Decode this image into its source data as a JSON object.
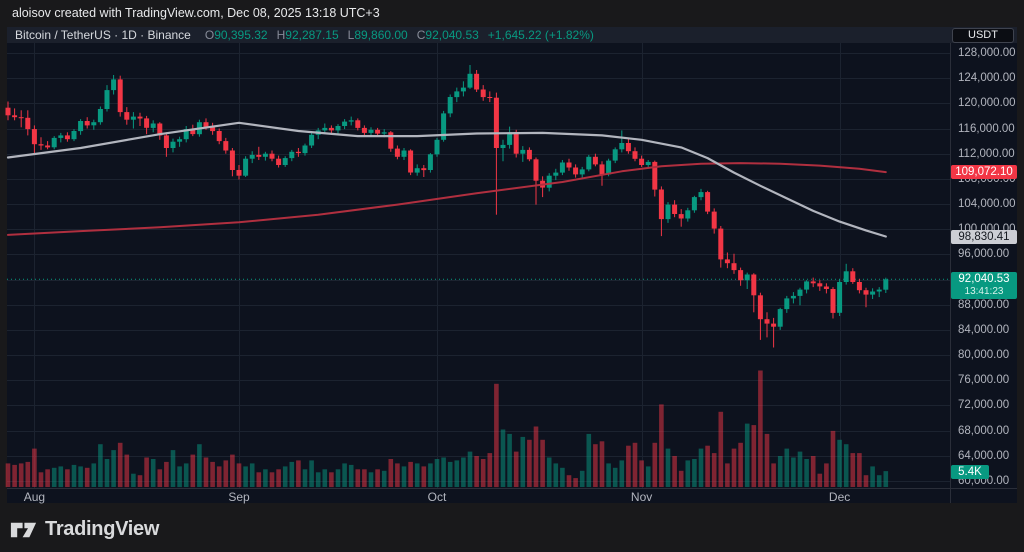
{
  "watermark": "aloisov created with TradingView.com, Dec 08, 2025 13:18 UTC+3",
  "legend": {
    "title": "Bitcoin / TetherUS · 1D · Binance",
    "o_label": "O",
    "o": "90,395.32",
    "h_label": "H",
    "h": "92,287.15",
    "l_label": "L",
    "l": "89,860.00",
    "c_label": "C",
    "c": "92,040.53",
    "change": "+1,645.22 (+1.82%)"
  },
  "currency_button": "USDT",
  "price_axis": {
    "ticks": [
      {
        "p": 128000,
        "label": "128,000.00"
      },
      {
        "p": 124000,
        "label": "124,000.00"
      },
      {
        "p": 120000,
        "label": "120,000.00"
      },
      {
        "p": 116000,
        "label": "116,000.00"
      },
      {
        "p": 112000,
        "label": "112,000.00"
      },
      {
        "p": 108000,
        "label": "108,000.00"
      },
      {
        "p": 104000,
        "label": "104,000.00"
      },
      {
        "p": 100000,
        "label": "100,000.00"
      },
      {
        "p": 96000,
        "label": "96,000.00"
      },
      {
        "p": 92000,
        "label": "92,000.00"
      },
      {
        "p": 88000,
        "label": "88,000.00"
      },
      {
        "p": 84000,
        "label": "84,000.00"
      },
      {
        "p": 80000,
        "label": "80,000.00"
      },
      {
        "p": 76000,
        "label": "76,000.00"
      },
      {
        "p": 72000,
        "label": "72,000.00"
      },
      {
        "p": 68000,
        "label": "68,000.00"
      },
      {
        "p": 64000,
        "label": "64,000.00"
      },
      {
        "p": 60000,
        "label": "60,000.00"
      }
    ]
  },
  "price_labels": {
    "ma_red": {
      "text": "109,072.10",
      "p": 109072.1
    },
    "ma_gray": {
      "text": "98,830.41",
      "p": 98830.41
    },
    "last": {
      "text": "92,040.53",
      "countdown": "13:41:23",
      "p": 92040.53
    },
    "volume": {
      "text": "5.4K"
    }
  },
  "time_axis": {
    "months": [
      {
        "label": "Aug",
        "i": 4
      },
      {
        "label": "Sep",
        "i": 35
      },
      {
        "label": "Oct",
        "i": 65
      },
      {
        "label": "Nov",
        "i": 96
      },
      {
        "label": "Dec",
        "i": 126
      }
    ]
  },
  "footer": {
    "brand": "TradingView"
  },
  "colors": {
    "up": "#089981",
    "down": "#f23645",
    "vol_up": "rgba(8,153,129,0.5)",
    "vol_down": "rgba(242,54,69,0.5)",
    "ma_gray": "#b2b5be",
    "ma_red": "#b02f3f",
    "grid": "#1c2330",
    "separator": "#2a2e39",
    "chart_bg": "#0d121e",
    "outer_bg": "#19191b",
    "accent": "#089981"
  },
  "chart_data": {
    "type": "candlestick",
    "symbol": "Bitcoin / TetherUS",
    "interval": "1D",
    "exchange": "Binance",
    "title": "BTCUSDT daily candles with volume and two moving averages",
    "start_date": "2025-07-28",
    "y_axis": {
      "min": 60000,
      "max": 128000,
      "step": 4000
    },
    "last_close": 92040.53,
    "ohlc_current": {
      "open": 90395.32,
      "high": 92287.15,
      "low": 89860.0,
      "close": 92040.53
    },
    "candles": [
      [
        119300,
        120300,
        117300,
        118100
      ],
      [
        118100,
        119200,
        117300,
        117800
      ],
      [
        117800,
        118900,
        116200,
        117700
      ],
      [
        117700,
        118900,
        114900,
        115900
      ],
      [
        115900,
        116500,
        112100,
        113500
      ],
      [
        113500,
        114600,
        112600,
        113300
      ],
      [
        113300,
        114000,
        112700,
        113000
      ],
      [
        113000,
        114800,
        112700,
        114500
      ],
      [
        114500,
        115300,
        113800,
        114900
      ],
      [
        114900,
        115400,
        113900,
        114300
      ],
      [
        114300,
        115900,
        114000,
        115600
      ],
      [
        115600,
        117500,
        115000,
        117200
      ],
      [
        117200,
        117800,
        116000,
        116500
      ],
      [
        116500,
        117400,
        115800,
        117000
      ],
      [
        117000,
        119500,
        116600,
        119100
      ],
      [
        119100,
        122900,
        118700,
        122100
      ],
      [
        122100,
        124500,
        121400,
        123800
      ],
      [
        123800,
        124400,
        117900,
        118600
      ],
      [
        118600,
        119400,
        116600,
        117400
      ],
      [
        117400,
        118600,
        116000,
        117900
      ],
      [
        117900,
        118500,
        116400,
        117600
      ],
      [
        117600,
        118000,
        115100,
        116100
      ],
      [
        116100,
        117300,
        115400,
        116800
      ],
      [
        116800,
        117000,
        114200,
        114900
      ],
      [
        114900,
        115400,
        111500,
        112900
      ],
      [
        112900,
        114400,
        112200,
        113900
      ],
      [
        113900,
        114700,
        113100,
        114300
      ],
      [
        114300,
        116400,
        113800,
        115900
      ],
      [
        115900,
        116600,
        114800,
        115100
      ],
      [
        115100,
        117400,
        114700,
        117000
      ],
      [
        117000,
        117600,
        115800,
        116200
      ],
      [
        116200,
        116900,
        115000,
        115600
      ],
      [
        115600,
        116000,
        113500,
        114000
      ],
      [
        114000,
        114500,
        112000,
        112500
      ],
      [
        112500,
        112900,
        108400,
        109400
      ],
      [
        109400,
        110200,
        107900,
        108500
      ],
      [
        108500,
        111600,
        108300,
        111200
      ],
      [
        111200,
        112400,
        110500,
        111800
      ],
      [
        111800,
        113100,
        111000,
        111500
      ],
      [
        111500,
        112300,
        110900,
        112000
      ],
      [
        112000,
        112500,
        110800,
        111200
      ],
      [
        111200,
        111700,
        109800,
        110200
      ],
      [
        110200,
        111600,
        109900,
        111300
      ],
      [
        111300,
        112600,
        110800,
        112300
      ],
      [
        112300,
        112900,
        111500,
        112100
      ],
      [
        112100,
        113600,
        111700,
        113300
      ],
      [
        113300,
        115400,
        112900,
        115000
      ],
      [
        115000,
        116100,
        114300,
        115700
      ],
      [
        115700,
        116800,
        115200,
        116100
      ],
      [
        116100,
        116500,
        115100,
        115700
      ],
      [
        115700,
        116700,
        115200,
        116400
      ],
      [
        116400,
        117500,
        115900,
        117100
      ],
      [
        117100,
        117900,
        116500,
        117300
      ],
      [
        117300,
        117600,
        115700,
        116100
      ],
      [
        116100,
        116500,
        114800,
        115300
      ],
      [
        115300,
        116200,
        114900,
        115800
      ],
      [
        115800,
        116100,
        114700,
        115200
      ],
      [
        115200,
        115900,
        114600,
        115400
      ],
      [
        115400,
        115600,
        112300,
        112800
      ],
      [
        112800,
        113300,
        111100,
        111500
      ],
      [
        111500,
        112900,
        111000,
        112500
      ],
      [
        112500,
        112700,
        108600,
        109000
      ],
      [
        109000,
        110300,
        108500,
        109700
      ],
      [
        109700,
        110200,
        108300,
        109400
      ],
      [
        109400,
        112100,
        109000,
        111900
      ],
      [
        111900,
        114500,
        111500,
        114200
      ],
      [
        114200,
        118800,
        113900,
        118400
      ],
      [
        118400,
        121400,
        117800,
        121000
      ],
      [
        121000,
        122500,
        120200,
        121900
      ],
      [
        121900,
        123500,
        121100,
        122500
      ],
      [
        122500,
        126100,
        122300,
        124700
      ],
      [
        124700,
        125300,
        121800,
        122200
      ],
      [
        122200,
        122900,
        120400,
        121000
      ],
      [
        121000,
        121900,
        120200,
        120900
      ],
      [
        120900,
        121700,
        102300,
        112900
      ],
      [
        112900,
        114200,
        110800,
        113400
      ],
      [
        113400,
        116300,
        112800,
        115400
      ],
      [
        115400,
        115800,
        111400,
        112000
      ],
      [
        112000,
        113200,
        110700,
        112600
      ],
      [
        112600,
        113000,
        110800,
        111100
      ],
      [
        111100,
        111400,
        103900,
        107700
      ],
      [
        107700,
        108400,
        105100,
        106600
      ],
      [
        106600,
        108900,
        106000,
        108500
      ],
      [
        108500,
        109600,
        107800,
        109000
      ],
      [
        109000,
        111000,
        108600,
        110600
      ],
      [
        110600,
        111200,
        109300,
        109800
      ],
      [
        109800,
        110300,
        108200,
        108700
      ],
      [
        108700,
        109900,
        108100,
        109500
      ],
      [
        109500,
        111800,
        109200,
        111500
      ],
      [
        111500,
        112000,
        110000,
        110300
      ],
      [
        110300,
        110800,
        106900,
        108700
      ],
      [
        108700,
        111200,
        108400,
        110900
      ],
      [
        110900,
        113000,
        110500,
        112700
      ],
      [
        112700,
        115700,
        112200,
        113700
      ],
      [
        113700,
        114400,
        112000,
        112400
      ],
      [
        112400,
        113000,
        110800,
        111200
      ],
      [
        111200,
        111700,
        109900,
        110200
      ],
      [
        110200,
        111000,
        109700,
        110700
      ],
      [
        110700,
        110900,
        105200,
        106300
      ],
      [
        106300,
        106800,
        98900,
        101600
      ],
      [
        101600,
        104300,
        101000,
        103900
      ],
      [
        103900,
        104600,
        101900,
        102400
      ],
      [
        102400,
        103200,
        100400,
        101700
      ],
      [
        101700,
        103400,
        101200,
        103000
      ],
      [
        103000,
        105300,
        102600,
        105100
      ],
      [
        105100,
        106400,
        104600,
        105900
      ],
      [
        105900,
        106100,
        102400,
        102800
      ],
      [
        102800,
        103300,
        99300,
        100100
      ],
      [
        100100,
        100500,
        93900,
        95200
      ],
      [
        95200,
        96300,
        93800,
        94600
      ],
      [
        94600,
        96100,
        92900,
        93500
      ],
      [
        93500,
        93900,
        91000,
        91900
      ],
      [
        91900,
        93100,
        90500,
        92800
      ],
      [
        92800,
        93000,
        86800,
        89500
      ],
      [
        89500,
        89900,
        82400,
        85700
      ],
      [
        85700,
        86800,
        82800,
        85000
      ],
      [
        85000,
        85900,
        81200,
        84500
      ],
      [
        84500,
        87500,
        84000,
        87300
      ],
      [
        87300,
        89400,
        86700,
        89000
      ],
      [
        89000,
        90000,
        88200,
        89400
      ],
      [
        89400,
        90700,
        87900,
        90400
      ],
      [
        90400,
        91900,
        89800,
        91700
      ],
      [
        91700,
        92300,
        90800,
        91400
      ],
      [
        91400,
        91900,
        90200,
        90900
      ],
      [
        90900,
        91400,
        89800,
        90500
      ],
      [
        90500,
        90800,
        85800,
        86700
      ],
      [
        86700,
        92000,
        86200,
        91600
      ],
      [
        91600,
        94500,
        91200,
        93300
      ],
      [
        93300,
        93800,
        91300,
        91600
      ],
      [
        91600,
        92100,
        89800,
        90300
      ],
      [
        90300,
        90700,
        87600,
        89600
      ],
      [
        89600,
        90600,
        88900,
        90100
      ],
      [
        90100,
        90800,
        89200,
        90400
      ],
      [
        90395.32,
        92287.15,
        89860,
        92040.53
      ]
    ],
    "volumes_k": [
      8,
      7.5,
      8,
      8.5,
      13,
      5,
      6,
      6.5,
      7,
      6,
      7.5,
      7,
      6.5,
      8,
      14.5,
      9.5,
      12.5,
      15,
      11,
      4.5,
      4,
      10,
      9.5,
      6,
      8.5,
      12.5,
      7,
      8,
      11,
      14.5,
      10,
      8.5,
      7,
      9,
      11,
      8,
      7,
      8,
      5,
      6,
      5,
      6,
      7,
      8.5,
      9,
      6,
      9,
      5,
      6,
      5,
      6,
      8,
      7.5,
      6,
      6,
      5,
      6,
      5.5,
      9.5,
      8,
      7,
      8.5,
      8,
      7,
      8,
      9.5,
      10,
      8.5,
      9,
      10,
      12,
      10.5,
      9.5,
      11.5,
      35,
      19.5,
      18,
      12,
      17,
      16,
      20.5,
      16,
      10,
      8,
      6.5,
      4,
      3,
      5.5,
      18,
      14.5,
      15.5,
      8,
      6.5,
      9,
      14,
      15,
      9,
      7,
      15,
      28,
      13,
      10.5,
      5.5,
      9,
      9.5,
      13,
      14,
      11.5,
      25.5,
      8,
      13,
      15,
      21.5,
      21,
      39.5,
      18,
      8,
      10.5,
      13,
      10,
      12,
      9.5,
      10.5,
      4.5,
      8,
      19,
      16,
      14.5,
      11.5,
      11.5,
      4,
      7,
      4,
      5.4
    ],
    "ma_gray_points": [
      [
        0,
        111400
      ],
      [
        11,
        112900
      ],
      [
        23,
        115100
      ],
      [
        35,
        116900
      ],
      [
        44,
        115600
      ],
      [
        53,
        114800
      ],
      [
        62,
        114800
      ],
      [
        71,
        115200
      ],
      [
        81,
        115300
      ],
      [
        90,
        114900
      ],
      [
        96,
        114200
      ],
      [
        102,
        113000
      ],
      [
        106,
        111300
      ],
      [
        110,
        109000
      ],
      [
        114,
        106900
      ],
      [
        118,
        104900
      ],
      [
        122,
        102900
      ],
      [
        126,
        101200
      ],
      [
        130,
        99800
      ],
      [
        133,
        98830.41
      ]
    ],
    "ma_red_points": [
      [
        0,
        99100
      ],
      [
        11,
        99700
      ],
      [
        23,
        100300
      ],
      [
        35,
        101100
      ],
      [
        47,
        102300
      ],
      [
        59,
        103900
      ],
      [
        71,
        105700
      ],
      [
        84,
        107500
      ],
      [
        93,
        109200
      ],
      [
        99,
        110000
      ],
      [
        105,
        110400
      ],
      [
        111,
        110500
      ],
      [
        117,
        110400
      ],
      [
        123,
        110100
      ],
      [
        129,
        109600
      ],
      [
        133,
        109072.1
      ]
    ]
  }
}
